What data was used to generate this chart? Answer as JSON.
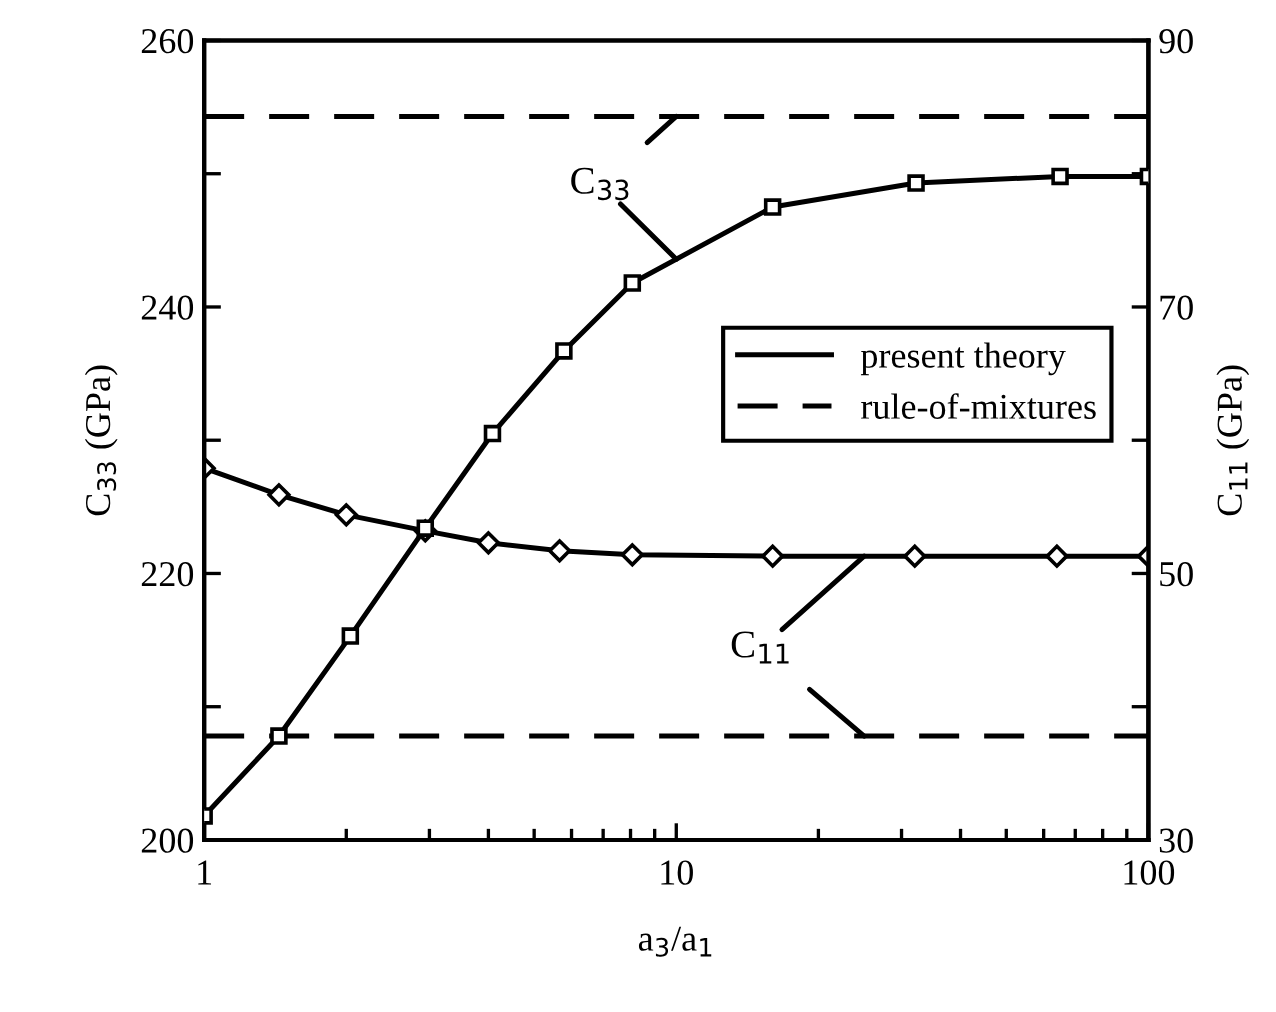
{
  "chart_data": {
    "type": "line",
    "xlabel": "a$_{3}$/a$_{1}$",
    "ylabel": "C$_{33}$ (GPa)",
    "y2label": "C$_{11}$ (GPa)",
    "log": "x",
    "grid": false,
    "legend": "right",
    "marker": "square",
    "line_style": "solid",
    "xlim": [
      1,
      100
    ],
    "xticks": [
      1,
      10,
      100
    ],
    "ylim": [
      200,
      260
    ],
    "yticks": [
      200,
      {
        "value": 210,
        "label": null
      },
      220,
      {
        "value": 230,
        "label": null
      },
      240,
      {
        "value": 250,
        "label": null
      },
      260
    ],
    "y2lim": [
      30,
      90
    ],
    "y2ticks": [
      30,
      {
        "value": 40,
        "label": null
      },
      50,
      {
        "value": 60,
        "label": null
      },
      70,
      {
        "value": 80,
        "label": null
      },
      90
    ],
    "series": [
      {
        "name": "present theory",
        "color": "#000000",
        "x": [
          1,
          1.44,
          2.04,
          2.94,
          4.08,
          5.78,
          8.07,
          16.0,
          32.2,
          65,
          100
        ],
        "values": [
          201.8,
          207.8,
          215.3,
          223.4,
          230.5,
          236.7,
          241.8,
          247.5,
          249.3,
          249.8,
          249.8
        ]
      },
      {
        "color": "#000000",
        "axis": "y2",
        "marker": "diamond",
        "x": [
          1,
          1.44,
          2.0,
          2.94,
          4.0,
          5.66,
          8.07,
          16,
          32,
          64,
          100
        ],
        "values": [
          57.9,
          55.9,
          54.4,
          53.2,
          52.3,
          51.7,
          51.4,
          51.3,
          51.3,
          51.3,
          51.3
        ]
      }
    ],
    "ref_lines": [
      {
        "axis": "y",
        "value": 254.3,
        "label": "rule-of-mixtures",
        "line_style": "dashed",
        "color": "#000000"
      },
      {
        "axis": "y2",
        "value": 37.8,
        "label": null,
        "line_style": "dashed",
        "color": "#000000"
      }
    ],
    "annotations": [
      {
        "text": "C$_{33}$",
        "x": 10,
        "y": 254.3
      },
      {
        "text": "C$_{11}$",
        "x": 25,
        "y": 207.8
      }
    ]
  }
}
